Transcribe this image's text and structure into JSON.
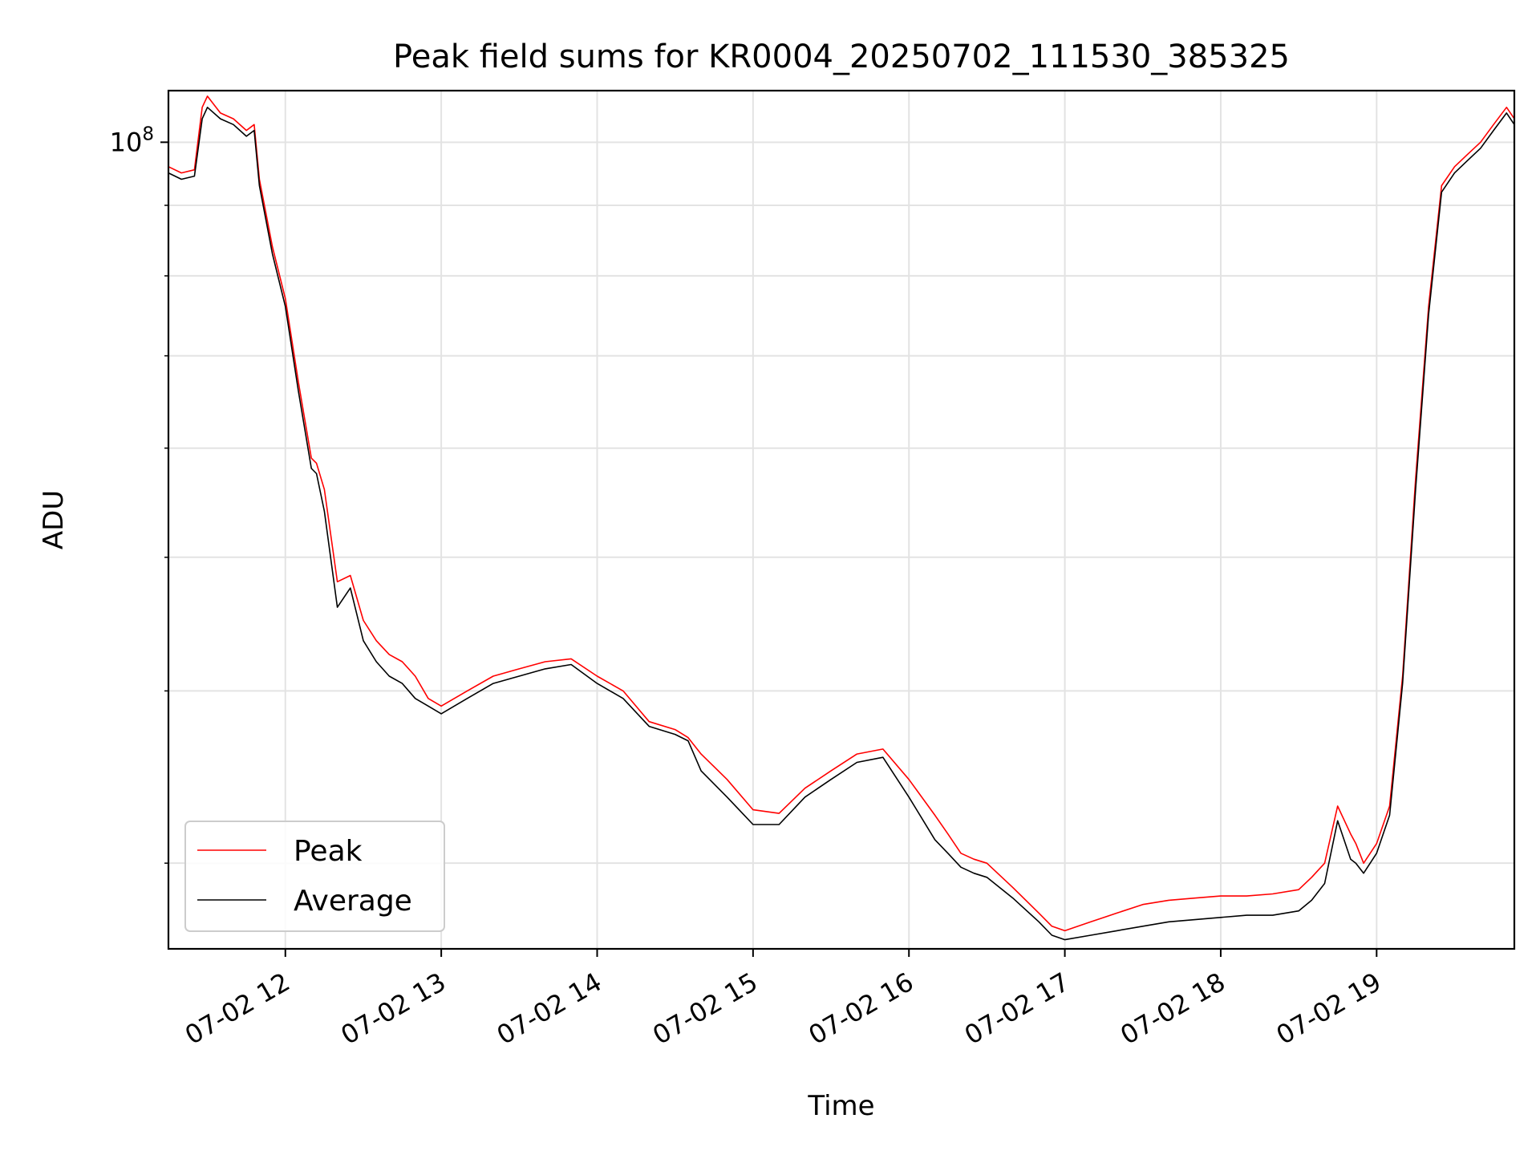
{
  "chart_data": {
    "type": "line",
    "title": "Peak field sums for KR0004_20250702_111530_385325",
    "xlabel": "Time",
    "ylabel": "ADU",
    "yscale": "log",
    "grid": true,
    "legend_placement": "lower-left",
    "xlim": [
      "2025-07-02 11:15",
      "2025-07-02 19:53"
    ],
    "ylim": [
      26000000,
      109000000
    ],
    "x_ticks": [
      "07-02 12",
      "07-02 13",
      "07-02 14",
      "07-02 15",
      "07-02 16",
      "07-02 17",
      "07-02 18",
      "07-02 19"
    ],
    "y_tick_labels": [
      {
        "base": "10",
        "exp": "8",
        "value": 100000000
      }
    ],
    "y_minor_ticks": [
      30000000,
      40000000,
      50000000,
      60000000,
      70000000,
      80000000,
      90000000
    ],
    "x": [
      "11:15",
      "11:20",
      "11:25",
      "11:28",
      "11:30",
      "11:35",
      "11:40",
      "11:45",
      "11:48",
      "11:50",
      "11:55",
      "12:00",
      "12:05",
      "12:10",
      "12:12",
      "12:15",
      "12:20",
      "12:25",
      "12:30",
      "12:35",
      "12:40",
      "12:45",
      "12:50",
      "12:55",
      "13:00",
      "13:10",
      "13:20",
      "13:30",
      "13:40",
      "13:50",
      "14:00",
      "14:10",
      "14:20",
      "14:30",
      "14:35",
      "14:40",
      "14:50",
      "15:00",
      "15:10",
      "15:20",
      "15:30",
      "15:40",
      "15:50",
      "16:00",
      "16:10",
      "16:15",
      "16:20",
      "16:25",
      "16:30",
      "16:40",
      "16:50",
      "16:55",
      "17:00",
      "17:10",
      "17:20",
      "17:30",
      "17:40",
      "17:50",
      "18:00",
      "18:10",
      "18:20",
      "18:30",
      "18:35",
      "18:40",
      "18:45",
      "18:50",
      "18:52",
      "18:55",
      "19:00",
      "19:05",
      "19:10",
      "19:15",
      "19:20",
      "19:25",
      "19:30",
      "19:35",
      "19:40",
      "19:45",
      "19:50",
      "19:53"
    ],
    "series": [
      {
        "name": "Peak",
        "color": "#ff0000",
        "values": [
          96000000,
          95000000,
          95500000,
          106000000,
          108000000,
          105000000,
          104000000,
          102000000,
          103000000,
          94000000,
          84000000,
          77000000,
          67000000,
          59000000,
          58500000,
          56000000,
          48000000,
          48500000,
          45000000,
          43500000,
          42500000,
          42000000,
          41000000,
          39500000,
          39000000,
          40000000,
          41000000,
          41500000,
          42000000,
          42200000,
          41000000,
          40000000,
          38000000,
          37500000,
          37000000,
          36000000,
          34500000,
          32800000,
          32600000,
          34000000,
          35000000,
          36000000,
          36300000,
          34500000,
          32500000,
          31500000,
          30500000,
          30200000,
          30000000,
          28800000,
          27600000,
          27000000,
          26800000,
          27200000,
          27600000,
          28000000,
          28200000,
          28300000,
          28400000,
          28400000,
          28500000,
          28700000,
          29300000,
          30000000,
          33000000,
          31500000,
          31000000,
          30000000,
          31000000,
          33000000,
          41000000,
          57000000,
          76000000,
          93000000,
          96000000,
          98000000,
          100000000,
          103000000,
          106000000,
          104000000
        ]
      },
      {
        "name": "Average",
        "color": "#000000",
        "values": [
          95000000,
          94000000,
          94500000,
          104000000,
          106000000,
          104000000,
          103000000,
          101000000,
          102000000,
          93000000,
          83000000,
          76000000,
          66000000,
          58000000,
          57500000,
          54000000,
          46000000,
          47500000,
          43500000,
          42000000,
          41000000,
          40500000,
          39500000,
          39000000,
          38500000,
          39500000,
          40500000,
          41000000,
          41500000,
          41800000,
          40500000,
          39500000,
          37700000,
          37200000,
          36800000,
          35000000,
          33500000,
          32000000,
          32000000,
          33500000,
          34500000,
          35500000,
          35800000,
          33500000,
          31200000,
          30500000,
          29800000,
          29500000,
          29300000,
          28300000,
          27200000,
          26600000,
          26400000,
          26600000,
          26800000,
          27000000,
          27200000,
          27300000,
          27400000,
          27500000,
          27500000,
          27700000,
          28200000,
          29000000,
          32200000,
          30200000,
          30000000,
          29500000,
          30500000,
          32500000,
          40500000,
          56000000,
          75000000,
          92000000,
          95000000,
          97000000,
          99000000,
          102000000,
          105000000,
          103000000
        ]
      }
    ]
  }
}
